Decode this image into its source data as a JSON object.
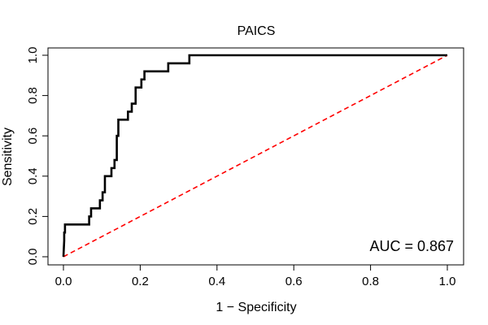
{
  "chart_data": {
    "type": "line",
    "title": "PAICS",
    "xlabel": "1 − Specificity",
    "ylabel": "Sensitivity",
    "xlim": [
      0,
      1
    ],
    "ylim": [
      0,
      1
    ],
    "x_ticks": [
      0.0,
      0.2,
      0.4,
      0.6,
      0.8,
      1.0
    ],
    "y_ticks": [
      0.0,
      0.2,
      0.4,
      0.6,
      0.8,
      1.0
    ],
    "x_tick_labels": [
      "0.0",
      "0.2",
      "0.4",
      "0.6",
      "0.8",
      "1.0"
    ],
    "y_tick_labels": [
      "0.0",
      "0.2",
      "0.4",
      "0.6",
      "0.8",
      "1.0"
    ],
    "annotation": "AUC = 0.867",
    "grid": false,
    "series": [
      {
        "name": "ROC curve",
        "color": "#000000",
        "style": "solid",
        "x": [
          0,
          0.002,
          0.002,
          0.004,
          0.004,
          0.067,
          0.067,
          0.072,
          0.072,
          0.095,
          0.095,
          0.102,
          0.102,
          0.108,
          0.108,
          0.125,
          0.125,
          0.133,
          0.133,
          0.139,
          0.139,
          0.143,
          0.143,
          0.152,
          0.152,
          0.168,
          0.168,
          0.178,
          0.178,
          0.188,
          0.188,
          0.194,
          0.194,
          0.203,
          0.203,
          0.211,
          0.211,
          0.219,
          0.219,
          0.273,
          0.273,
          0.328,
          0.328,
          1.0
        ],
        "y": [
          0,
          0.08,
          0.12,
          0.12,
          0.16,
          0.16,
          0.2,
          0.2,
          0.24,
          0.24,
          0.28,
          0.28,
          0.32,
          0.32,
          0.4,
          0.4,
          0.44,
          0.44,
          0.48,
          0.48,
          0.6,
          0.6,
          0.68,
          0.68,
          0.68,
          0.68,
          0.72,
          0.72,
          0.76,
          0.76,
          0.84,
          0.84,
          0.84,
          0.84,
          0.88,
          0.88,
          0.92,
          0.92,
          0.92,
          0.92,
          0.96,
          0.96,
          1.0,
          1.0
        ]
      },
      {
        "name": "Reference line",
        "color": "#ff0000",
        "style": "dashed",
        "x": [
          0,
          1
        ],
        "y": [
          0,
          1
        ]
      }
    ]
  }
}
